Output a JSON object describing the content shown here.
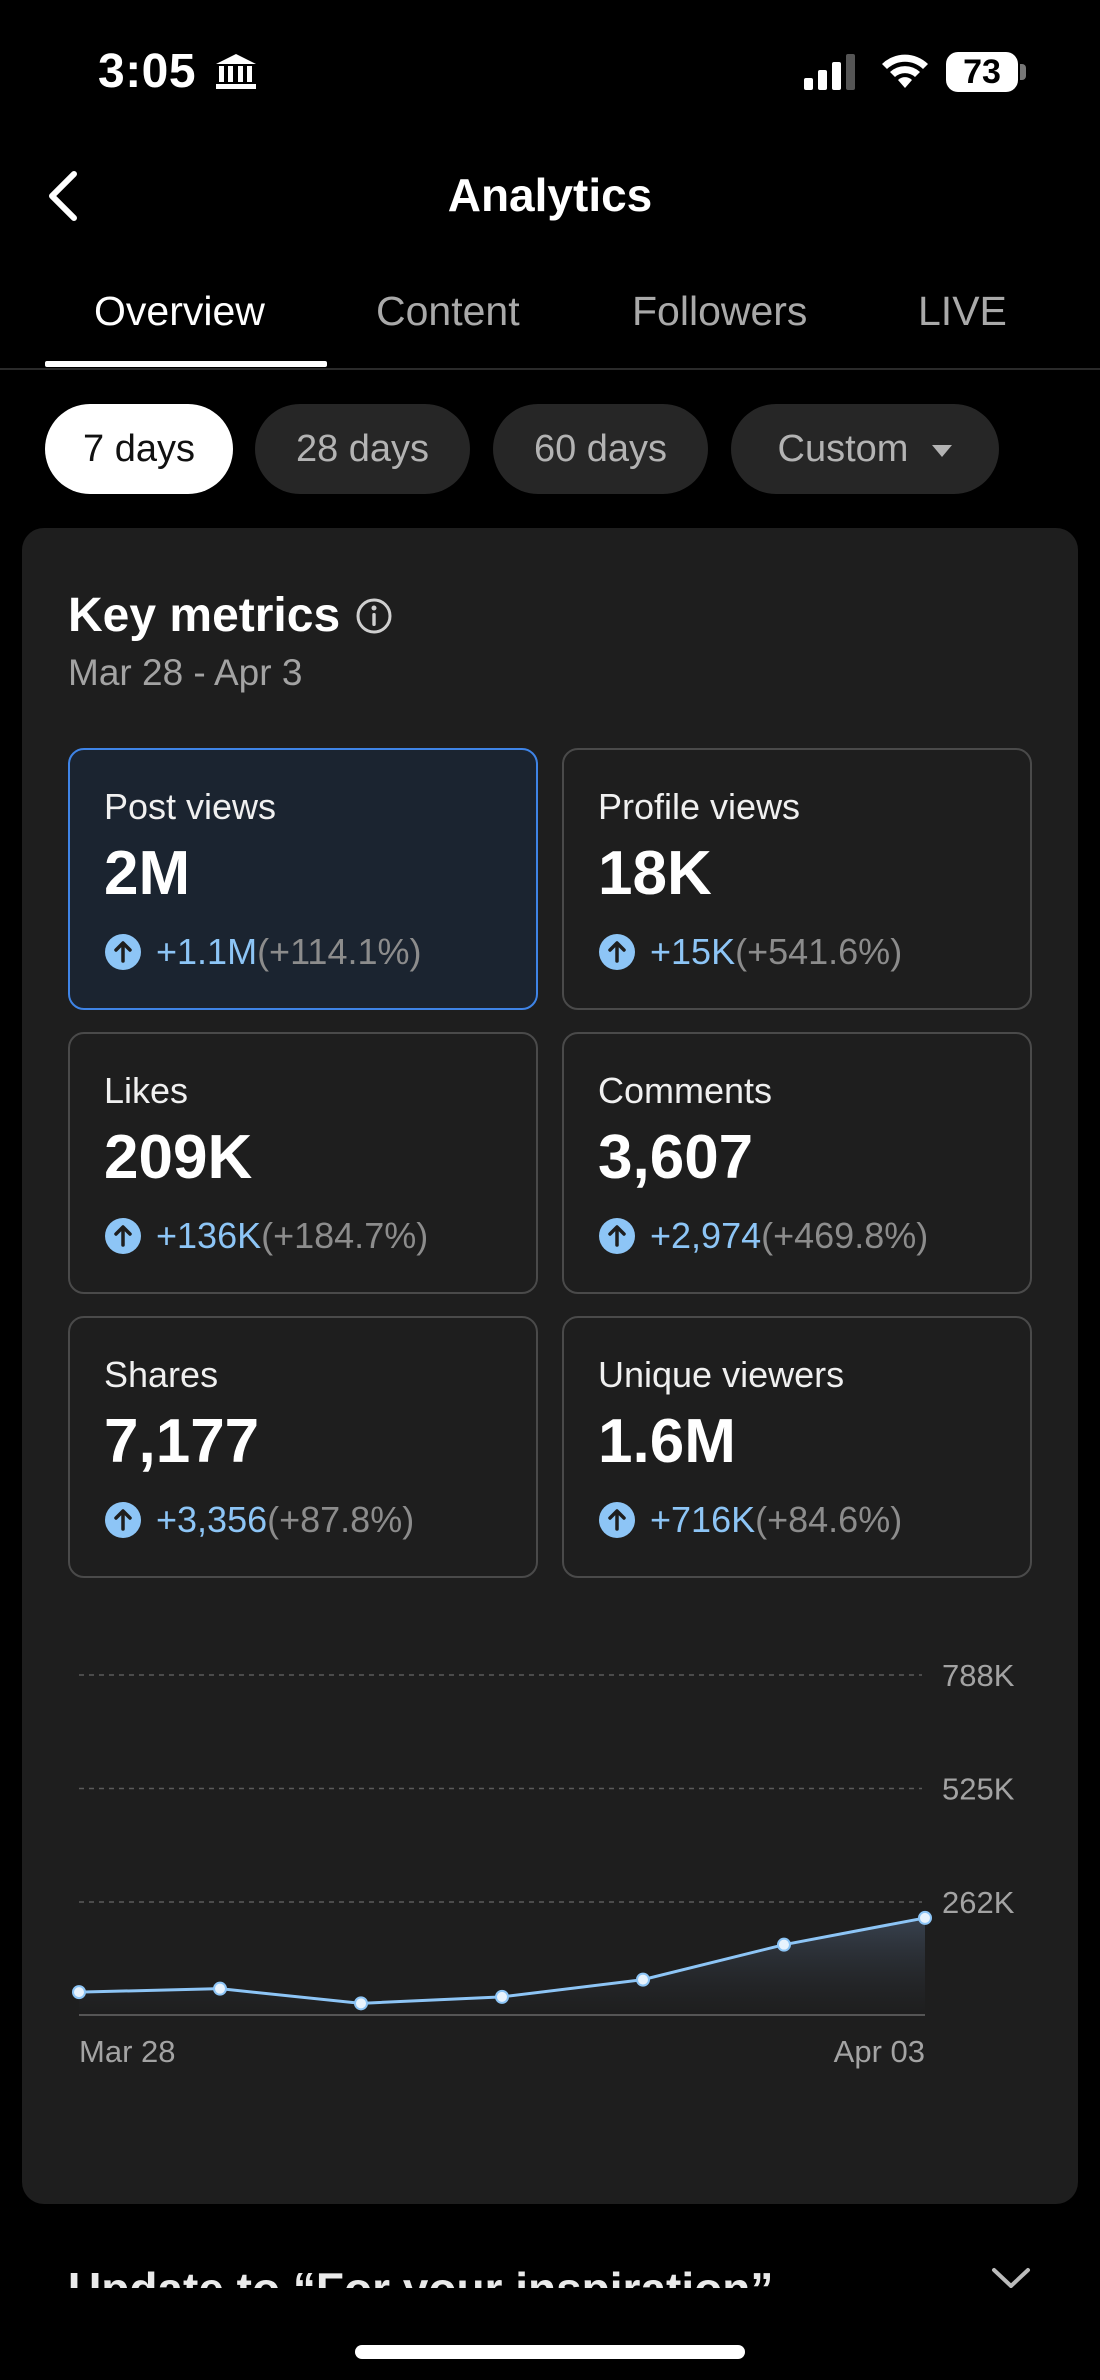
{
  "status_bar": {
    "time": "3:05",
    "battery": "73"
  },
  "header": {
    "title": "Analytics"
  },
  "tabs": [
    {
      "label": "Overview",
      "active": true
    },
    {
      "label": "Content",
      "active": false
    },
    {
      "label": "Followers",
      "active": false
    },
    {
      "label": "LIVE",
      "active": false
    }
  ],
  "filters": [
    {
      "label": "7 days",
      "active": true
    },
    {
      "label": "28 days",
      "active": false
    },
    {
      "label": "60 days",
      "active": false
    },
    {
      "label": "Custom",
      "active": false
    }
  ],
  "key_metrics": {
    "title": "Key metrics",
    "date_range": "Mar 28 - Apr 3",
    "items": [
      {
        "label": "Post views",
        "value": "2M",
        "delta": "+1.1M",
        "pct": "(+114.1%)",
        "selected": true
      },
      {
        "label": "Profile views",
        "value": "18K",
        "delta": "+15K",
        "pct": "(+541.6%)",
        "selected": false
      },
      {
        "label": "Likes",
        "value": "209K",
        "delta": "+136K",
        "pct": "(+184.7%)",
        "selected": false
      },
      {
        "label": "Comments",
        "value": "3,607",
        "delta": "+2,974",
        "pct": "(+469.8%)",
        "selected": false
      },
      {
        "label": "Shares",
        "value": "7,177",
        "delta": "+3,356",
        "pct": "(+87.8%)",
        "selected": false
      },
      {
        "label": "Unique viewers",
        "value": "1.6M",
        "delta": "+716K",
        "pct": "(+84.6%)",
        "selected": false
      }
    ]
  },
  "colors": {
    "accent": "#8dc5f6",
    "selected_border": "#3f84e6",
    "card_bg": "#1e1e1e"
  },
  "chart_data": {
    "type": "area",
    "x": [
      "Mar 28",
      "Mar 29",
      "Mar 30",
      "Mar 31",
      "Apr 01",
      "Apr 02",
      "Apr 03"
    ],
    "x_tick_labels": [
      "Mar 28",
      "Apr 03"
    ],
    "values": [
      53000,
      61000,
      27000,
      42000,
      82000,
      163000,
      225000
    ],
    "y_ticks": [
      "262K",
      "525K",
      "788K"
    ],
    "y_tick_values": [
      262000,
      525000,
      788000
    ],
    "ylim": [
      0,
      788000
    ],
    "grid": true
  },
  "footer": {
    "peek_text": "Update to “For your inspiration”"
  }
}
